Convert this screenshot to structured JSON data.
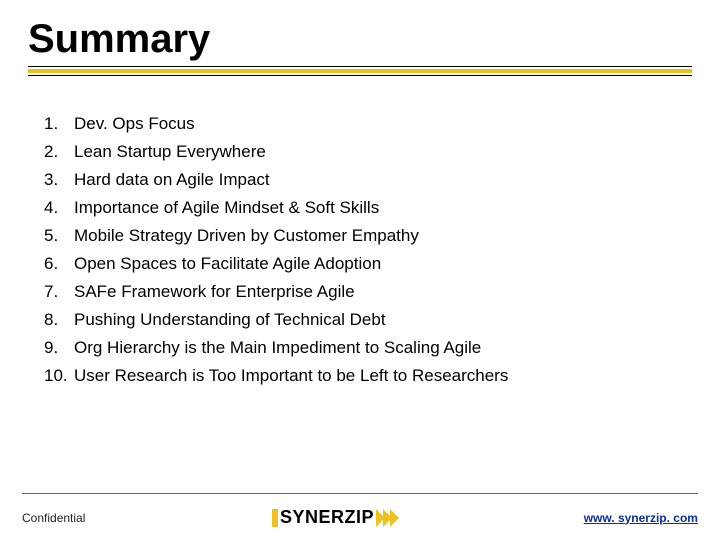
{
  "title": "Summary",
  "accent_color": "#f0c020",
  "list": [
    {
      "n": "1.",
      "text": "Dev. Ops Focus"
    },
    {
      "n": "2.",
      "text": "Lean Startup Everywhere"
    },
    {
      "n": "3.",
      "text": "Hard data on Agile Impact"
    },
    {
      "n": "4.",
      "text": "Importance of Agile Mindset & Soft Skills"
    },
    {
      "n": "5.",
      "text": "Mobile Strategy Driven by Customer Empathy"
    },
    {
      "n": "6.",
      "text": "Open Spaces to Facilitate Agile Adoption"
    },
    {
      "n": "7.",
      "text": "SAFe Framework for Enterprise Agile"
    },
    {
      "n": "8.",
      "text": "Pushing Understanding of Technical Debt"
    },
    {
      "n": "9.",
      "text": "Org Hierarchy is the Main Impediment to Scaling Agile"
    },
    {
      "n": "10.",
      "text": "User Research is Too Important to be Left to Researchers"
    }
  ],
  "footer": {
    "confidential": "Confidential",
    "logo_text": "SYNERZIP",
    "url": "www. synerzip. com"
  }
}
